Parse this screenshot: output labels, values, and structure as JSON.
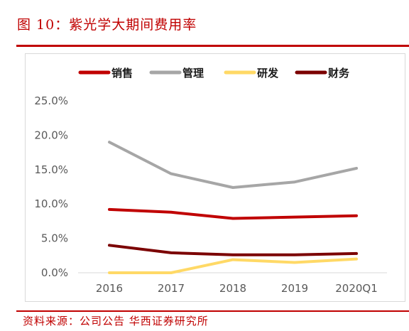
{
  "header": {
    "title": "图 10：紫光学大期间费用率"
  },
  "footer": {
    "source": "资料来源：公司公告 华西证券研究所"
  },
  "colors": {
    "accent": "#c00000"
  },
  "chart_data": {
    "type": "line",
    "categories": [
      "2016",
      "2017",
      "2018",
      "2019",
      "2020Q1"
    ],
    "yticks": [
      "25.0%",
      "20.0%",
      "15.0%",
      "10.0%",
      "5.0%",
      "0.0%"
    ],
    "ylim": [
      0,
      25
    ],
    "grid": false,
    "legend_position": "top",
    "series": [
      {
        "name": "销售",
        "color": "#c00000",
        "values": [
          9.2,
          8.8,
          7.9,
          8.1,
          8.3
        ]
      },
      {
        "name": "管理",
        "color": "#a6a6a6",
        "values": [
          19.0,
          14.4,
          12.4,
          13.2,
          15.2
        ]
      },
      {
        "name": "研发",
        "color": "#ffd966",
        "values": [
          0.0,
          0.0,
          1.9,
          1.5,
          2.0
        ]
      },
      {
        "name": "财务",
        "color": "#7b0000",
        "values": [
          4.0,
          2.9,
          2.6,
          2.6,
          2.8
        ]
      }
    ]
  }
}
